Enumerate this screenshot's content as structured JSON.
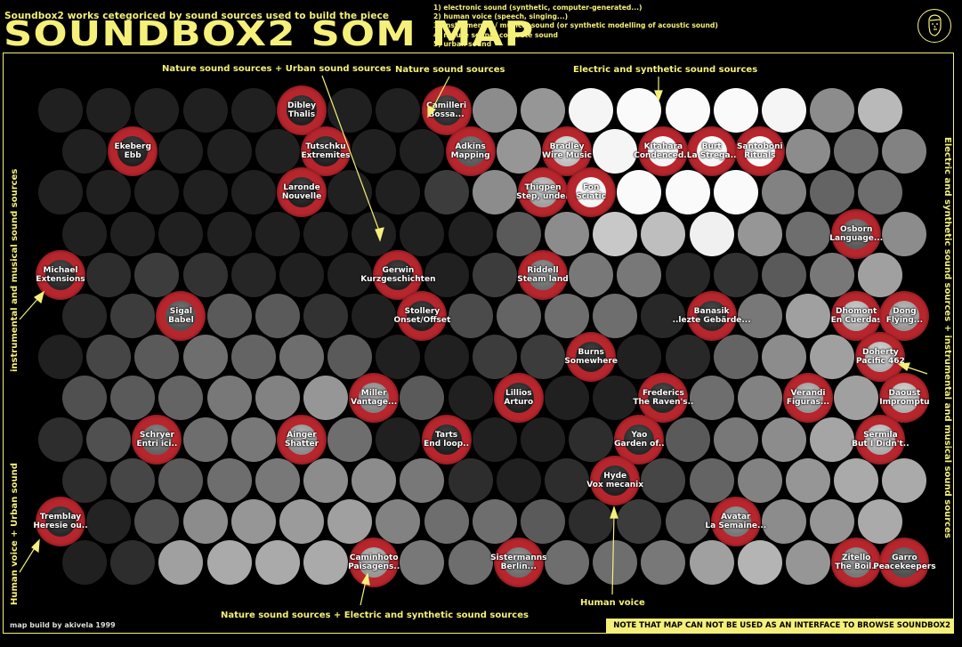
{
  "header": {
    "subtitle": "Soundbox2 works cetegoriced by sound sources used to build the piece",
    "title": "SOUNDBOX2 SOM MAP",
    "legend": [
      "1) electronic sound (synthetic, computer-generated...)",
      "2) human voice (speech, singing...)",
      "3) instrumental / musical sound (or synthetic modelling of acoustic sound)",
      "4) nature sound, concrete sound",
      "5) urban sound"
    ],
    "logo_icon": "face-portrait-icon"
  },
  "colors": {
    "accent": "#f5f07a",
    "marker_ring": "#b8262d",
    "background": "#000000"
  },
  "annotations": {
    "top_nature_urban": "Nature sound sources + Urban sound sources",
    "top_nature": "Nature sound sources",
    "top_electric": "Electric and synthetic sound sources",
    "bottom_nature_electric": "Nature sound sources + Electric and synthetic sound sources",
    "bottom_human": "Human voice",
    "left_instrumental": "instrumental and musical sound sources",
    "left_human_urban": "Human voice + Urban sound",
    "right_electric_instrumental": "Electric and synthetic sound sources + instrumental and musical sound sources"
  },
  "footer": {
    "credit": "map build by akivela 1999",
    "note": "NOTE THAT MAP CAN NOT BE USED AS AN INTERFACE TO BROWSE SOUNDBOX2 WORKS!"
  },
  "grid": {
    "rows": 12,
    "cols": 18,
    "gray_levels": [
      [
        32,
        32,
        32,
        32,
        32,
        32,
        32,
        32,
        45,
        140,
        150,
        245,
        250,
        250,
        250,
        245,
        140,
        185
      ],
      [
        32,
        32,
        32,
        32,
        32,
        32,
        32,
        32,
        90,
        150,
        190,
        245,
        245,
        245,
        250,
        140,
        110,
        130
      ],
      [
        32,
        32,
        32,
        32,
        32,
        32,
        32,
        32,
        60,
        140,
        160,
        245,
        250,
        250,
        250,
        130,
        100,
        110
      ],
      [
        32,
        32,
        32,
        32,
        32,
        32,
        32,
        32,
        32,
        90,
        140,
        200,
        190,
        240,
        150,
        110,
        90,
        140
      ],
      [
        40,
        45,
        60,
        50,
        38,
        32,
        32,
        32,
        32,
        60,
        110,
        120,
        120,
        40,
        50,
        90,
        120,
        160
      ],
      [
        40,
        60,
        80,
        90,
        90,
        50,
        32,
        32,
        75,
        100,
        110,
        110,
        40,
        40,
        120,
        160,
        170,
        150
      ],
      [
        32,
        70,
        90,
        110,
        100,
        110,
        90,
        32,
        32,
        60,
        60,
        32,
        32,
        40,
        100,
        140,
        160,
        175
      ],
      [
        80,
        90,
        100,
        120,
        130,
        150,
        130,
        90,
        32,
        32,
        32,
        32,
        40,
        110,
        130,
        150,
        160,
        175
      ],
      [
        45,
        80,
        100,
        110,
        120,
        140,
        110,
        32,
        32,
        32,
        32,
        45,
        40,
        90,
        120,
        140,
        165,
        170
      ],
      [
        45,
        70,
        90,
        110,
        120,
        140,
        140,
        120,
        45,
        32,
        45,
        32,
        70,
        100,
        130,
        150,
        170,
        170
      ],
      [
        40,
        35,
        80,
        140,
        150,
        155,
        160,
        130,
        110,
        110,
        90,
        45,
        60,
        90,
        120,
        140,
        150,
        170
      ],
      [
        32,
        45,
        160,
        170,
        170,
        170,
        150,
        120,
        110,
        110,
        110,
        110,
        120,
        160,
        180,
        150,
        120,
        80
      ]
    ]
  },
  "works": [
    {
      "row": 0,
      "col": 5,
      "composer": "Dibley",
      "title": "Thalis"
    },
    {
      "row": 0,
      "col": 8,
      "composer": "Camilleri",
      "title": "Bossa..."
    },
    {
      "row": 1,
      "col": 1,
      "composer": "Ekeberg",
      "title": "Ebb"
    },
    {
      "row": 1,
      "col": 5,
      "composer": "Tutschku",
      "title": "Extremites"
    },
    {
      "row": 1,
      "col": 8,
      "composer": "Adkins",
      "title": "Mapping"
    },
    {
      "row": 1,
      "col": 10,
      "composer": "Bradley",
      "title": "Wire Music"
    },
    {
      "row": 1,
      "col": 12,
      "composer": "Kitahara",
      "title": "Condenced..."
    },
    {
      "row": 1,
      "col": 13,
      "composer": "Burt",
      "title": "La Strega.."
    },
    {
      "row": 1,
      "col": 14,
      "composer": "Santoboni",
      "title": "Rituals"
    },
    {
      "row": 2,
      "col": 5,
      "composer": "Laronde",
      "title": "Nouvelle"
    },
    {
      "row": 2,
      "col": 10,
      "composer": "Thigpen",
      "title": "Step, under"
    },
    {
      "row": 2,
      "col": 11,
      "composer": "Fon",
      "title": "Sciatic"
    },
    {
      "row": 3,
      "col": 16,
      "composer": "Osborn",
      "title": "Language..."
    },
    {
      "row": 4,
      "col": 0,
      "composer": "Michael",
      "title": "Extensions"
    },
    {
      "row": 4,
      "col": 7,
      "composer": "Gerwin",
      "title": "Kurzgeschichten"
    },
    {
      "row": 4,
      "col": 10,
      "composer": "Riddell",
      "title": "Steam land"
    },
    {
      "row": 5,
      "col": 2,
      "composer": "Sigal",
      "title": "Babel"
    },
    {
      "row": 5,
      "col": 7,
      "composer": "Stollery",
      "title": "Onset/Offset"
    },
    {
      "row": 5,
      "col": 13,
      "composer": "Banasik",
      "title": "..lezte Gebärde..."
    },
    {
      "row": 5,
      "col": 16,
      "composer": "Dhomont",
      "title": "En Cuerdas"
    },
    {
      "row": 5,
      "col": 17,
      "composer": "Dong",
      "title": "Flying..."
    },
    {
      "row": 6,
      "col": 11,
      "composer": "Burns",
      "title": "Somewhere"
    },
    {
      "row": 6,
      "col": 17,
      "composer": "Doherty",
      "title": "Pacific 462"
    },
    {
      "row": 7,
      "col": 6,
      "composer": "Miller",
      "title": "Vantage..."
    },
    {
      "row": 7,
      "col": 9,
      "composer": "Lillios",
      "title": "Arturo"
    },
    {
      "row": 7,
      "col": 12,
      "composer": "Frederics",
      "title": "The Raven's.."
    },
    {
      "row": 7,
      "col": 15,
      "composer": "Verandi",
      "title": "Figuras..."
    },
    {
      "row": 7,
      "col": 17,
      "composer": "Daoust",
      "title": "Impromptu"
    },
    {
      "row": 8,
      "col": 2,
      "composer": "Schryer",
      "title": "Entri ici.."
    },
    {
      "row": 8,
      "col": 5,
      "composer": "Ainger",
      "title": "Shatter"
    },
    {
      "row": 8,
      "col": 8,
      "composer": "Tarts",
      "title": "End loop.."
    },
    {
      "row": 8,
      "col": 12,
      "composer": "Yao",
      "title": "Garden of.."
    },
    {
      "row": 8,
      "col": 17,
      "composer": "Sermila",
      "title": "But I Didn't.."
    },
    {
      "row": 9,
      "col": 11,
      "composer": "Hyde",
      "title": "Vox mecanix"
    },
    {
      "row": 10,
      "col": 0,
      "composer": "Tremblay",
      "title": "Heresie ou.."
    },
    {
      "row": 10,
      "col": 14,
      "composer": "Avatar",
      "title": "La Semaine..."
    },
    {
      "row": 11,
      "col": 6,
      "composer": "Caminhoto",
      "title": "Paisagens.."
    },
    {
      "row": 11,
      "col": 9,
      "composer": "Sistermanns",
      "title": "Berlin..."
    },
    {
      "row": 11,
      "col": 16,
      "composer": "Zitello",
      "title": "The Boil.."
    },
    {
      "row": 11,
      "col": 17,
      "composer": "Garro",
      "title": "Peacekeepers"
    }
  ]
}
